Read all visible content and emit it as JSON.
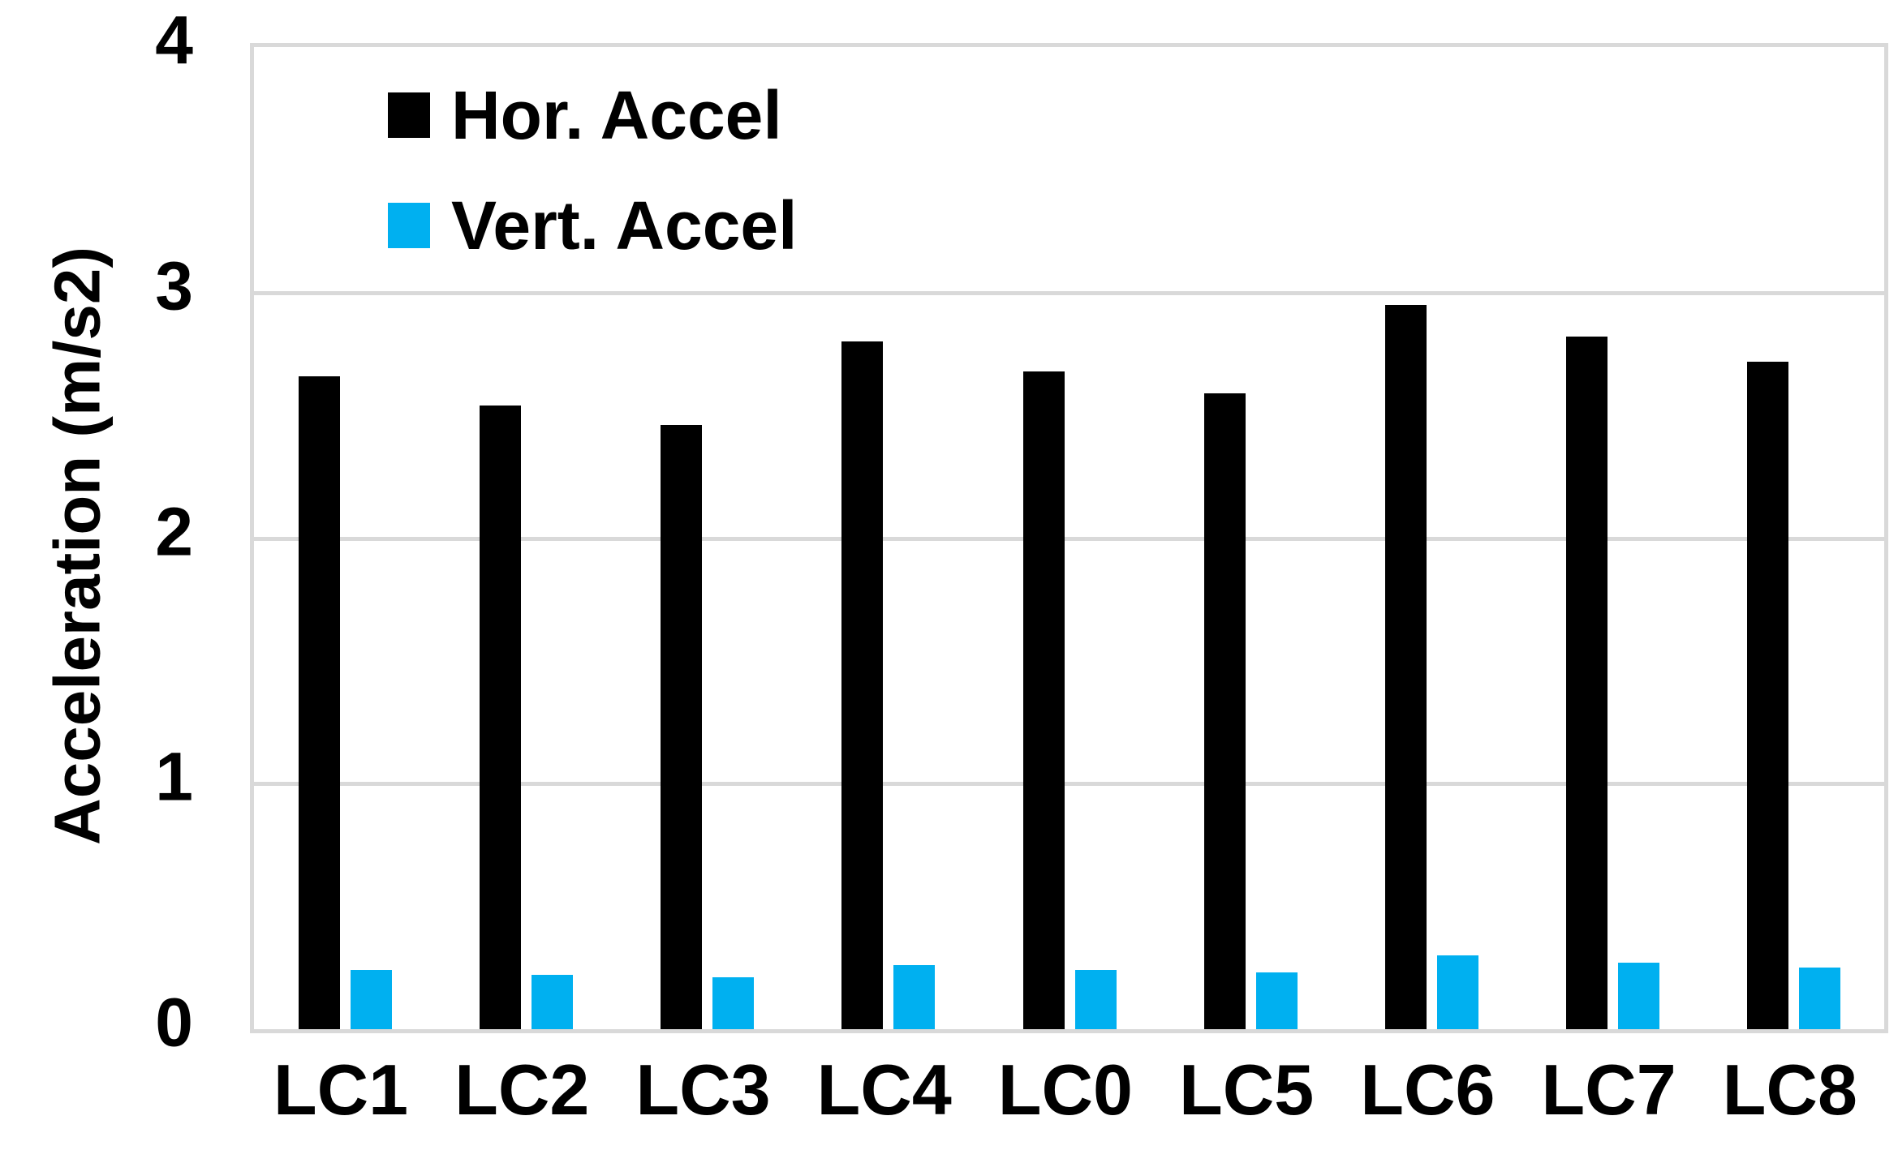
{
  "chart_data": {
    "type": "bar",
    "title": "",
    "categories": [
      "LC1",
      "LC2",
      "LC3",
      "LC4",
      "LC0",
      "LC5",
      "LC6",
      "LC7",
      "LC8"
    ],
    "series": [
      {
        "name": "Hor. Accel",
        "color": "#000000",
        "values": [
          2.66,
          2.54,
          2.46,
          2.8,
          2.68,
          2.59,
          2.95,
          2.82,
          2.72
        ]
      },
      {
        "name": "Vert. Accel",
        "color": "#00b0f0",
        "values": [
          0.24,
          0.22,
          0.21,
          0.26,
          0.24,
          0.23,
          0.3,
          0.27,
          0.25
        ]
      }
    ],
    "xlabel": "",
    "ylabel": "Acceleration (m/s2)",
    "ylim": [
      0,
      4
    ],
    "yticks": [
      0,
      1,
      2,
      3,
      4
    ],
    "grid": true,
    "grid_color": "#d9d9d9",
    "plot_border_color": "#d9d9d9",
    "background": "#ffffff",
    "legend_position": "inside-top-left",
    "bar_color_hor": "#000000",
    "bar_color_vert": "#00b0f0"
  }
}
